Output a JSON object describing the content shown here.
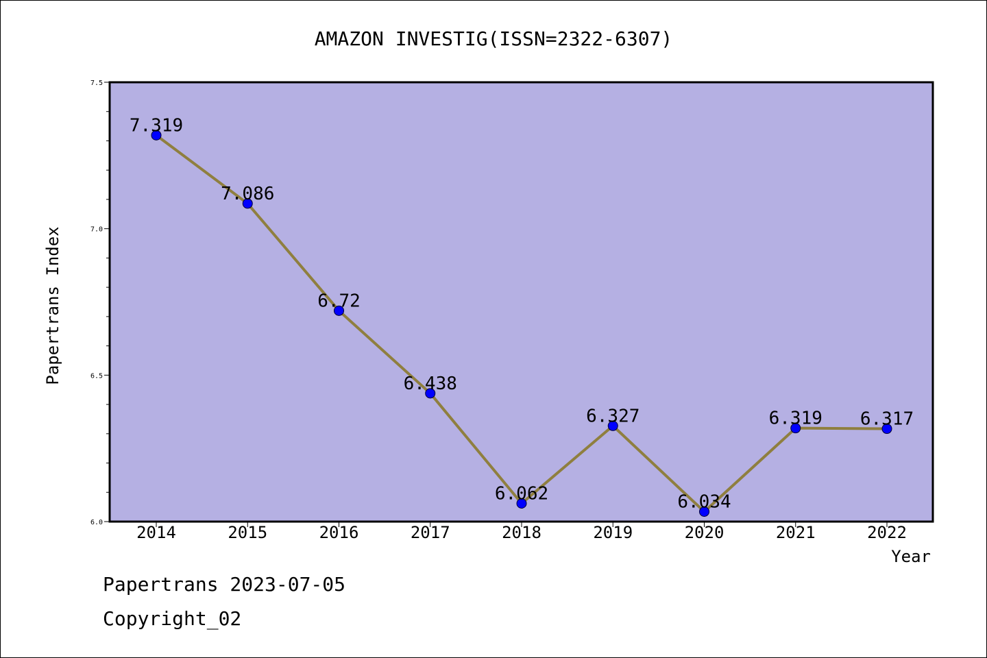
{
  "chart_data": {
    "type": "line",
    "title": "AMAZON INVESTIG(ISSN=2322-6307)",
    "xlabel": "Year",
    "ylabel": "Papertrans Index",
    "categories": [
      "2014",
      "2015",
      "2016",
      "2017",
      "2018",
      "2019",
      "2020",
      "2021",
      "2022"
    ],
    "values": [
      7.319,
      7.086,
      6.72,
      6.438,
      6.062,
      6.327,
      6.034,
      6.319,
      6.317
    ],
    "data_labels": [
      "7.319",
      "7.086",
      "6.72",
      "6.438",
      "6.062",
      "6.327",
      "6.034",
      "6.319",
      "6.317"
    ],
    "ylim": [
      6.0,
      7.5
    ],
    "y_ticks": [
      "6.0",
      "6.5",
      "7.0",
      "7.5"
    ],
    "grid": false,
    "colors": {
      "plot_background": "#b5b0e3",
      "line": "#8f7f3f",
      "marker": "#0000ff"
    }
  },
  "footer": {
    "date_line": "Papertrans 2023-07-05",
    "copyright": "Copyright_02"
  }
}
